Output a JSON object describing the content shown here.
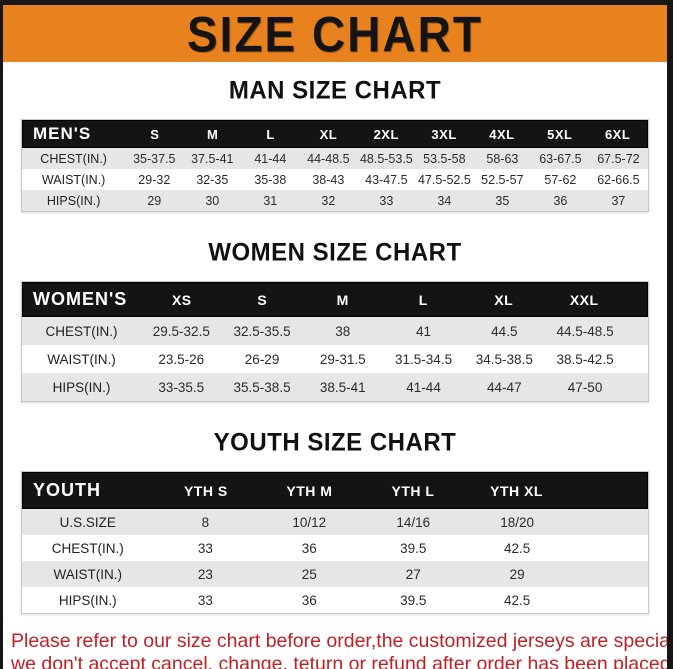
{
  "banner": {
    "title": "SIZE CHART"
  },
  "colors": {
    "banner_orange": "#E8821E",
    "header_black": "#141414",
    "row_gray": "#E6E6E6",
    "note_red": "#C02026"
  },
  "sections": [
    {
      "heading": "MAN SIZE CHART",
      "table": {
        "header": [
          "MEN'S",
          "S",
          "M",
          "L",
          "XL",
          "2XL",
          "3XL",
          "4XL",
          "5XL",
          "6XL"
        ],
        "rows": [
          {
            "label": "CHEST(IN.)",
            "values": [
              "35-37.5",
              "37.5-41",
              "41-44",
              "44-48.5",
              "48.5-53.5",
              "53.5-58",
              "58-63",
              "63-67.5",
              "67.5-72"
            ]
          },
          {
            "label": "WAIST(IN.)",
            "values": [
              "29-32",
              "32-35",
              "35-38",
              "38-43",
              "43-47.5",
              "47.5-52.5",
              "52.5-57",
              "57-62",
              "62-66.5"
            ]
          },
          {
            "label": "HIPS(IN.)",
            "values": [
              "29",
              "30",
              "31",
              "32",
              "33",
              "34",
              "35",
              "36",
              "37"
            ]
          }
        ]
      }
    },
    {
      "heading": "WOMEN SIZE CHART",
      "table": {
        "header": [
          "WOMEN'S",
          "XS",
          "S",
          "M",
          "L",
          "XL",
          "XXL"
        ],
        "rows": [
          {
            "label": "CHEST(IN.)",
            "values": [
              "29.5-32.5",
              "32.5-35.5",
              "38",
              "41",
              "44.5",
              "44.5-48.5"
            ]
          },
          {
            "label": "WAIST(IN.)",
            "values": [
              "23.5-26",
              "26-29",
              "29-31.5",
              "31.5-34.5",
              "34.5-38.5",
              "38.5-42.5"
            ]
          },
          {
            "label": "HIPS(IN.)",
            "values": [
              "33-35.5",
              "35.5-38.5",
              "38.5-41",
              "41-44",
              "44-47",
              "47-50"
            ]
          }
        ]
      }
    },
    {
      "heading": "YOUTH SIZE CHART",
      "table": {
        "header": [
          "YOUTH",
          "YTH S",
          "YTH M",
          "YTH L",
          "YTH XL"
        ],
        "rows": [
          {
            "label": "U.S.SIZE",
            "values": [
              "8",
              "10/12",
              "14/16",
              "18/20"
            ]
          },
          {
            "label": "CHEST(IN.)",
            "values": [
              "33",
              "36",
              "39.5",
              "42.5"
            ]
          },
          {
            "label": "WAIST(IN.)",
            "values": [
              "23",
              "25",
              "27",
              "29"
            ]
          },
          {
            "label": "HIPS(IN.)",
            "values": [
              "33",
              "36",
              "39.5",
              "42.5"
            ]
          }
        ]
      }
    }
  ],
  "note": {
    "line1": "Please refer to our size chart before order,the customized jerseys are special products,",
    "line2": "we don't accept cancel, change, teturn or refund after order has been placed!"
  }
}
